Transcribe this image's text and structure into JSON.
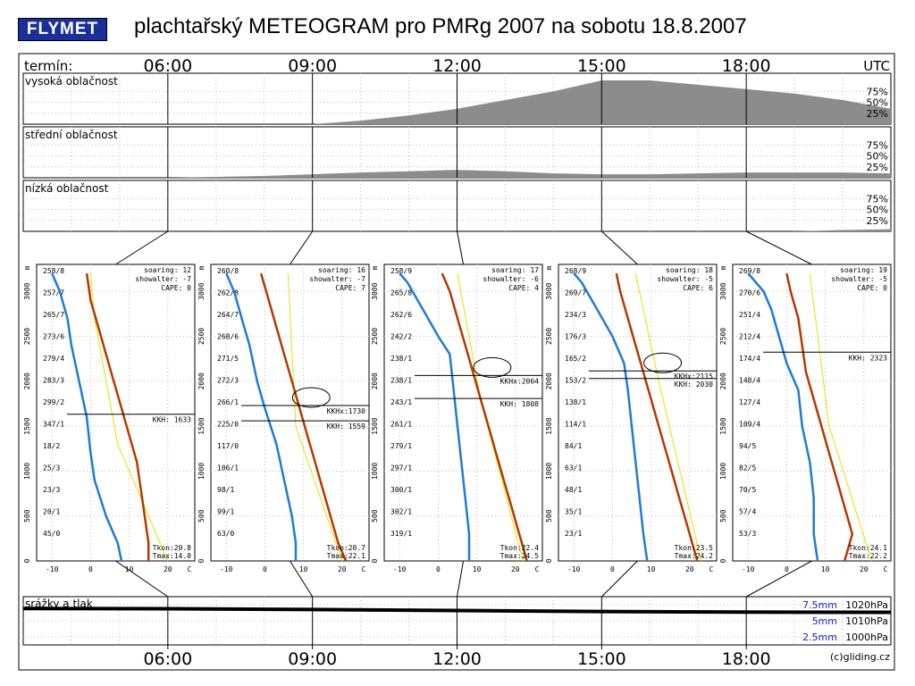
{
  "header": {
    "logo_text": "FLYMET",
    "title": "plachtařský METEOGRAM pro PMRg 2007 na sobotu 18.8.2007"
  },
  "colors": {
    "logo_bg": "#1a2f9a",
    "cloud_fill": "#8c8c8c",
    "temp_line": "#b33a00",
    "dew_line": "#1e7bd6",
    "dry_adiabat": "#e8e000",
    "precip_label": "#1a1acc"
  },
  "timeline": {
    "top_label": "termín:",
    "unit": "UTC",
    "times": [
      "06:00",
      "09:00",
      "12:00",
      "15:00",
      "18:00"
    ],
    "footer": "(c)gliding.cz"
  },
  "chart_data": {
    "type": "area",
    "x_unit": "UTC hour",
    "panels": [
      {
        "label": "vysoká oblačnost",
        "ticks": [
          "75%",
          "50%",
          "25%"
        ],
        "x": [
          3,
          6,
          9,
          10,
          11,
          12,
          13,
          14,
          15,
          16,
          17,
          18,
          19,
          20,
          21
        ],
        "values": [
          0,
          0,
          0,
          8,
          20,
          35,
          55,
          75,
          100,
          100,
          90,
          80,
          70,
          55,
          35
        ]
      },
      {
        "label": "střední oblačnost",
        "ticks": [
          "75%",
          "50%",
          "25%"
        ],
        "x": [
          3,
          6,
          7,
          8,
          9,
          10,
          11,
          12,
          13,
          14,
          15,
          16,
          17,
          18,
          19,
          20,
          21
        ],
        "values": [
          0,
          0,
          2,
          4,
          8,
          12,
          15,
          18,
          15,
          10,
          8,
          8,
          10,
          12,
          12,
          12,
          10
        ]
      },
      {
        "label": "nízká oblačnost",
        "ticks": [
          "75%",
          "50%",
          "25%"
        ],
        "x": [
          3,
          18,
          19,
          20,
          21
        ],
        "values": [
          0,
          0,
          0,
          3,
          5
        ]
      }
    ],
    "soundings": [
      {
        "time": "06:00",
        "soaring": "soaring: 12",
        "showalter": "showalter: -7",
        "cape": "CAPE:  0",
        "wind_labels": [
          "258/8",
          "257/7",
          "265/7",
          "273/6",
          "279/4",
          "283/3",
          "299/2",
          "347/1",
          "18/2",
          "25/3",
          "23/3",
          "20/1",
          "45/0"
        ],
        "lines": [
          {
            "label": "KKH: 1633",
            "alt": 1633
          }
        ],
        "tkon": "Tkon:20.8",
        "tmax": "Tmax:14.0",
        "temp": [
          [
            15,
            0
          ],
          [
            15,
            200
          ],
          [
            14,
            500
          ],
          [
            13,
            800
          ],
          [
            12,
            1100
          ],
          [
            10,
            1400
          ],
          [
            8,
            1700
          ],
          [
            6,
            2000
          ],
          [
            4,
            2300
          ],
          [
            2,
            2600
          ],
          [
            0,
            2900
          ],
          [
            -1,
            3200
          ]
        ],
        "dew": [
          [
            8,
            0
          ],
          [
            7,
            200
          ],
          [
            4,
            500
          ],
          [
            1,
            900
          ],
          [
            0,
            1200
          ],
          [
            -1,
            1600
          ],
          [
            -3,
            2000
          ],
          [
            -5,
            2400
          ],
          [
            -6,
            2700
          ],
          [
            -8,
            3000
          ],
          [
            -10,
            3200
          ]
        ],
        "adiabat": [
          [
            20,
            0
          ],
          [
            7,
            1300
          ],
          [
            1,
            2700
          ],
          [
            0,
            3200
          ]
        ]
      },
      {
        "time": "09:00",
        "soaring": "soaring: 16",
        "showalter": "showalter: -7",
        "cape": "CAPE:  7",
        "wind_labels": [
          "260/8",
          "262/8",
          "264/7",
          "268/6",
          "271/5",
          "272/3",
          "266/1",
          "225/0",
          "117/0",
          "106/1",
          "98/1",
          "99/1",
          "63/0"
        ],
        "lines": [
          {
            "label": "KKHx:1730",
            "alt": 1730
          },
          {
            "label": "KKH: 1559",
            "alt": 1559
          }
        ],
        "tkon": "Tkon:20.7",
        "tmax": "Tmax:22.1",
        "temp": [
          [
            21,
            0
          ],
          [
            19,
            200
          ],
          [
            17,
            500
          ],
          [
            15,
            800
          ],
          [
            13,
            1100
          ],
          [
            11,
            1400
          ],
          [
            9,
            1700
          ],
          [
            7,
            2000
          ],
          [
            5,
            2300
          ],
          [
            3,
            2600
          ],
          [
            1,
            2900
          ],
          [
            -1,
            3200
          ]
        ],
        "dew": [
          [
            8,
            0
          ],
          [
            8,
            200
          ],
          [
            7,
            500
          ],
          [
            5,
            900
          ],
          [
            3,
            1300
          ],
          [
            0,
            1700
          ],
          [
            -2,
            2000
          ],
          [
            -4,
            2400
          ],
          [
            -6,
            2700
          ],
          [
            -8,
            3000
          ],
          [
            -10,
            3200
          ]
        ],
        "adiabat": [
          [
            20,
            0
          ],
          [
            8,
            1500
          ],
          [
            6,
            3200
          ]
        ]
      },
      {
        "time": "12:00",
        "soaring": "soaring: 17",
        "showalter": "showalter: -6",
        "cape": "CAPE:  4",
        "wind_labels": [
          "258/9",
          "265/8",
          "262/6",
          "242/2",
          "238/1",
          "238/1",
          "243/1",
          "261/1",
          "279/1",
          "297/1",
          "300/1",
          "302/1",
          "319/1"
        ],
        "lines": [
          {
            "label": "KKHx:2064",
            "alt": 2064
          },
          {
            "label": "KKH: 1808",
            "alt": 1808
          }
        ],
        "tkon": "Tkon:22.4",
        "tmax": "Tmax:24.5",
        "temp": [
          [
            23,
            0
          ],
          [
            21,
            300
          ],
          [
            19,
            600
          ],
          [
            17,
            900
          ],
          [
            15,
            1200
          ],
          [
            13,
            1500
          ],
          [
            11,
            1800
          ],
          [
            9,
            2100
          ],
          [
            7,
            2400
          ],
          [
            5,
            2700
          ],
          [
            3,
            3000
          ],
          [
            1,
            3200
          ]
        ],
        "dew": [
          [
            8,
            0
          ],
          [
            8,
            300
          ],
          [
            7,
            700
          ],
          [
            6,
            1100
          ],
          [
            5,
            1500
          ],
          [
            4,
            1900
          ],
          [
            3,
            2300
          ],
          [
            0,
            2500
          ],
          [
            -4,
            2800
          ],
          [
            -8,
            3100
          ],
          [
            -10,
            3200
          ]
        ],
        "adiabat": [
          [
            22,
            0
          ],
          [
            11,
            1800
          ],
          [
            5,
            3200
          ]
        ]
      },
      {
        "time": "15:00",
        "soaring": "soaring: 18",
        "showalter": "showalter: -5",
        "cape": "CAPE:  6",
        "wind_labels": [
          "268/9",
          "269/7",
          "234/3",
          "176/3",
          "165/2",
          "153/2",
          "138/1",
          "114/1",
          "84/1",
          "63/1",
          "48/1",
          "35/1",
          "23/1"
        ],
        "lines": [
          {
            "label": "KKHx:2115",
            "alt": 2115
          },
          {
            "label": "KKH: 2030",
            "alt": 2030
          }
        ],
        "tkon": "Tkon:23.5",
        "tmax": "Tmax:24.2",
        "temp": [
          [
            22,
            0
          ],
          [
            20,
            300
          ],
          [
            18,
            600
          ],
          [
            16,
            900
          ],
          [
            14,
            1200
          ],
          [
            12,
            1500
          ],
          [
            10,
            1800
          ],
          [
            8,
            2100
          ],
          [
            6,
            2400
          ],
          [
            4,
            2700
          ],
          [
            2,
            3000
          ],
          [
            1,
            3200
          ]
        ],
        "dew": [
          [
            9,
            0
          ],
          [
            8,
            300
          ],
          [
            7,
            700
          ],
          [
            6,
            1100
          ],
          [
            5,
            1500
          ],
          [
            4,
            1900
          ],
          [
            3,
            2200
          ],
          [
            0,
            2500
          ],
          [
            -4,
            2800
          ],
          [
            -8,
            3100
          ],
          [
            -10,
            3200
          ]
        ],
        "adiabat": [
          [
            23,
            0
          ],
          [
            12,
            2000
          ],
          [
            6,
            3200
          ]
        ]
      },
      {
        "time": "18:00",
        "soaring": "soaring: 19",
        "showalter": "showalter: -5",
        "cape": "CAPE:  0",
        "wind_labels": [
          "269/8",
          "270/6",
          "251/4",
          "212/4",
          "174/4",
          "148/4",
          "127/4",
          "109/4",
          "94/5",
          "82/5",
          "70/5",
          "57/4",
          "53/3"
        ],
        "lines": [
          {
            "label": "KKH: 2323",
            "alt": 2323
          }
        ],
        "tkon": "Tkon:24.1",
        "tmax": "Tmax:22.2",
        "temp": [
          [
            15,
            0
          ],
          [
            17,
            300
          ],
          [
            15,
            600
          ],
          [
            13,
            900
          ],
          [
            11,
            1200
          ],
          [
            9,
            1500
          ],
          [
            7,
            1800
          ],
          [
            5,
            2100
          ],
          [
            4,
            2400
          ],
          [
            3,
            2700
          ],
          [
            1,
            3000
          ],
          [
            0,
            3200
          ]
        ],
        "dew": [
          [
            8,
            0
          ],
          [
            7,
            300
          ],
          [
            7,
            700
          ],
          [
            6,
            1100
          ],
          [
            4,
            1500
          ],
          [
            3,
            1900
          ],
          [
            0,
            2200
          ],
          [
            -2,
            2500
          ],
          [
            -4,
            2800
          ],
          [
            -6,
            3000
          ],
          [
            -10,
            3200
          ]
        ],
        "adiabat": [
          [
            22,
            0
          ],
          [
            11,
            1500
          ],
          [
            6,
            3200
          ]
        ]
      }
    ],
    "sounding_axes": {
      "y_ticks": [
        "0",
        "500",
        "1000",
        "1500",
        "2000",
        "2500",
        "3000"
      ],
      "y_unit": "m",
      "x_ticks": [
        "-10",
        "0",
        "10",
        "20"
      ],
      "x_unit": "C",
      "xlim": [
        -14,
        27
      ],
      "ylim": [
        0,
        3300
      ]
    },
    "precipitation": {
      "label": "srážky a tlak",
      "precip_ticks": [
        "7.5mm",
        "5mm",
        "2.5mm"
      ],
      "pressure_ticks": [
        "1020hPa",
        "1010hPa",
        "1000hPa"
      ],
      "x": [
        3,
        6,
        9,
        12,
        15,
        18,
        21
      ],
      "pressure": [
        1017.6,
        1017.5,
        1017.0,
        1016.4,
        1015.8,
        1015.4,
        1015.3
      ]
    }
  }
}
